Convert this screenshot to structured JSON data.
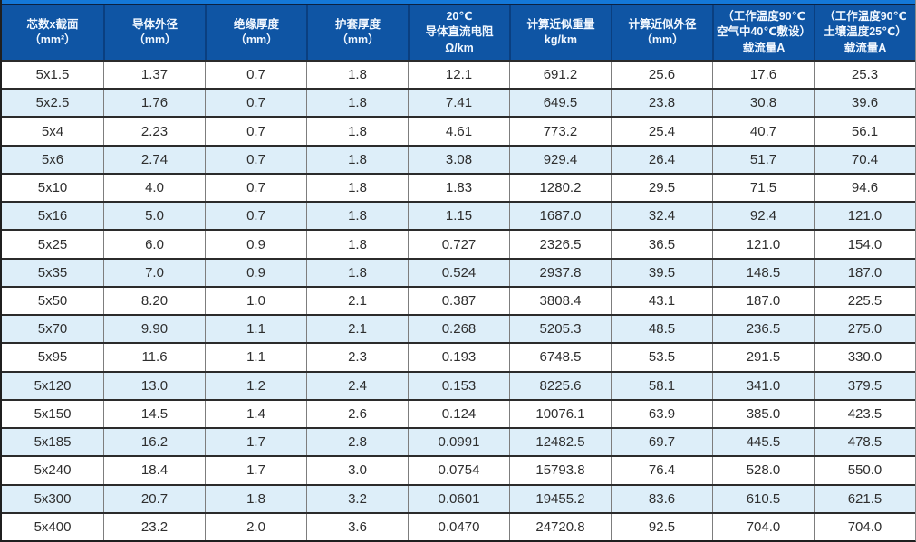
{
  "colors": {
    "header_background": "#0f55a4",
    "top_accent_strip": "#1478d8",
    "alt_row_background": "#ddeef9",
    "row_background": "#ffffff",
    "horizontal_border": "#2b2b2b",
    "vertical_border": "#7d7d7d",
    "header_text": "#ffffff",
    "cell_text": "#2e2e2e"
  },
  "table": {
    "columns": [
      {
        "label": "芯数x截面\n（mm²）"
      },
      {
        "label": "导体外径\n（mm）"
      },
      {
        "label": "绝缘厚度\n（mm）"
      },
      {
        "label": "护套厚度\n（mm）"
      },
      {
        "label": "20℃\n导体直流电阻\nΩ/km"
      },
      {
        "label": "计算近似重量\nkg/km"
      },
      {
        "label": "计算近似外径\n（mm）"
      },
      {
        "label": "（工作温度90℃\n空气中40℃敷设）\n载流量A"
      },
      {
        "label": "（工作温度90℃\n土壤温度25℃）\n载流量A"
      }
    ],
    "rows": [
      {
        "cells": [
          "5x1.5",
          "1.37",
          "0.7",
          "1.8",
          "12.1",
          "691.2",
          "25.6",
          "17.6",
          "25.3"
        ]
      },
      {
        "cells": [
          "5x2.5",
          "1.76",
          "0.7",
          "1.8",
          "7.41",
          "649.5",
          "23.8",
          "30.8",
          "39.6"
        ]
      },
      {
        "cells": [
          "5x4",
          "2.23",
          "0.7",
          "1.8",
          "4.61",
          "773.2",
          "25.4",
          "40.7",
          "56.1"
        ]
      },
      {
        "cells": [
          "5x6",
          "2.74",
          "0.7",
          "1.8",
          "3.08",
          "929.4",
          "26.4",
          "51.7",
          "70.4"
        ]
      },
      {
        "cells": [
          "5x10",
          "4.0",
          "0.7",
          "1.8",
          "1.83",
          "1280.2",
          "29.5",
          "71.5",
          "94.6"
        ]
      },
      {
        "cells": [
          "5x16",
          "5.0",
          "0.7",
          "1.8",
          "1.15",
          "1687.0",
          "32.4",
          "92.4",
          "121.0"
        ]
      },
      {
        "cells": [
          "5x25",
          "6.0",
          "0.9",
          "1.8",
          "0.727",
          "2326.5",
          "36.5",
          "121.0",
          "154.0"
        ]
      },
      {
        "cells": [
          "5x35",
          "7.0",
          "0.9",
          "1.8",
          "0.524",
          "2937.8",
          "39.5",
          "148.5",
          "187.0"
        ]
      },
      {
        "cells": [
          "5x50",
          "8.20",
          "1.0",
          "2.1",
          "0.387",
          "3808.4",
          "43.1",
          "187.0",
          "225.5"
        ]
      },
      {
        "cells": [
          "5x70",
          "9.90",
          "1.1",
          "2.1",
          "0.268",
          "5205.3",
          "48.5",
          "236.5",
          "275.0"
        ]
      },
      {
        "cells": [
          "5x95",
          "11.6",
          "1.1",
          "2.3",
          "0.193",
          "6748.5",
          "53.5",
          "291.5",
          "330.0"
        ]
      },
      {
        "cells": [
          "5x120",
          "13.0",
          "1.2",
          "2.4",
          "0.153",
          "8225.6",
          "58.1",
          "341.0",
          "379.5"
        ]
      },
      {
        "cells": [
          "5x150",
          "14.5",
          "1.4",
          "2.6",
          "0.124",
          "10076.1",
          "63.9",
          "385.0",
          "423.5"
        ]
      },
      {
        "cells": [
          "5x185",
          "16.2",
          "1.7",
          "2.8",
          "0.0991",
          "12482.5",
          "69.7",
          "445.5",
          "478.5"
        ]
      },
      {
        "cells": [
          "5x240",
          "18.4",
          "1.7",
          "3.0",
          "0.0754",
          "15793.8",
          "76.4",
          "528.0",
          "550.0"
        ]
      },
      {
        "cells": [
          "5x300",
          "20.7",
          "1.8",
          "3.2",
          "0.0601",
          "19455.2",
          "83.6",
          "610.5",
          "621.5"
        ]
      },
      {
        "cells": [
          "5x400",
          "23.2",
          "2.0",
          "3.6",
          "0.0470",
          "24720.8",
          "92.5",
          "704.0",
          "704.0"
        ]
      }
    ]
  }
}
